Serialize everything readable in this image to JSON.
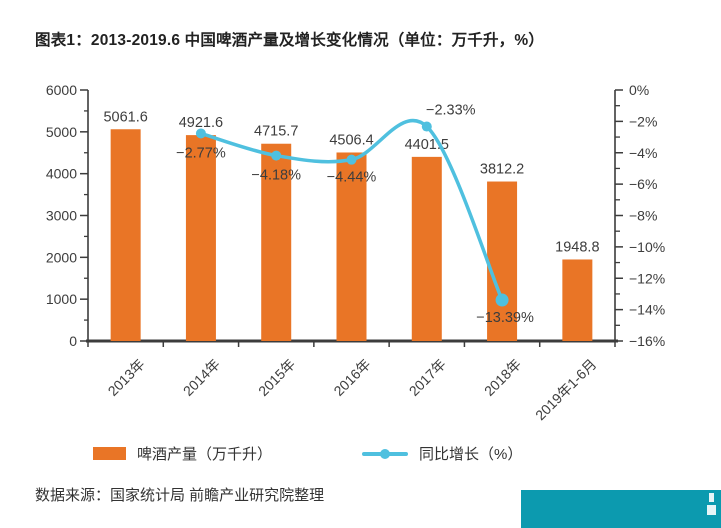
{
  "title": "图表1：2013-2019.6 中国啤酒产量及增长变化情况（单位：万千升，%）",
  "source": "数据来源：国家统计局 前瞻产业研究院整理",
  "colors": {
    "bar": "#E97526",
    "line": "#4FC0DF",
    "axis": "#3C3C3C",
    "text": "#3D3D3D",
    "title_text": "#222222",
    "brand_bar": "#0C9AAF"
  },
  "chart_data": {
    "type": "bar",
    "subtype": "bar+line combo, dual axis",
    "categories": [
      "2013年",
      "2014年",
      "2015年",
      "2016年",
      "2017年",
      "2018年",
      "2019年1-6月"
    ],
    "series": [
      {
        "name": "啤酒产量（万千升）",
        "type": "bar",
        "axis": "left",
        "values": [
          5061.6,
          4921.6,
          4715.7,
          4506.4,
          4401.5,
          3812.2,
          1948.8
        ],
        "labels": [
          "5061.6",
          "4921.6",
          "4715.7",
          "4506.4",
          "4401.5",
          "3812.2",
          "1948.8"
        ]
      },
      {
        "name": "同比增长（%）",
        "type": "line",
        "axis": "right",
        "values": [
          null,
          -2.77,
          -4.18,
          -4.44,
          -2.33,
          -13.39,
          null
        ],
        "labels": [
          null,
          "−2.77%",
          "−4.18%",
          "−4.44%",
          "−2.33%",
          "−13.39%",
          null
        ],
        "label_offsets": [
          null,
          [
            0,
            24
          ],
          [
            0,
            24
          ],
          [
            0,
            22
          ],
          [
            24,
            -12
          ],
          [
            3,
            22
          ],
          null
        ]
      }
    ],
    "left_axis": {
      "min": 0,
      "max": 6000,
      "major_step": 1000,
      "minor_step": 500,
      "tick_labels": [
        "0",
        "1000",
        "2000",
        "3000",
        "4000",
        "5000",
        "6000"
      ]
    },
    "right_axis": {
      "min": -16,
      "max": 0,
      "major_step": 2,
      "minor_step": 1,
      "suffix": "%",
      "tick_labels": [
        "0%",
        "−2%",
        "−4%",
        "−6%",
        "−8%",
        "−10%",
        "−12%",
        "−14%",
        "−16%"
      ]
    },
    "grid": false,
    "legend_position": "bottom",
    "x_label_rotation": -45
  }
}
